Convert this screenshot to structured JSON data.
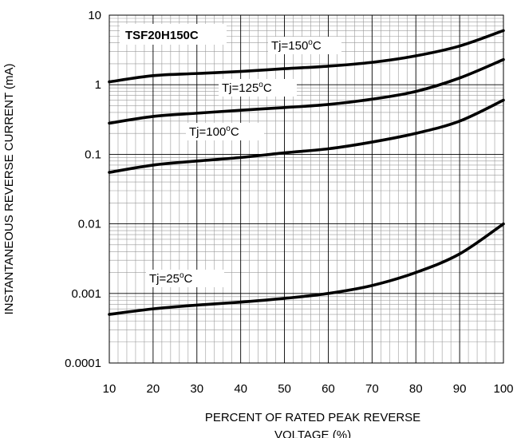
{
  "chart_data": {
    "type": "line",
    "title": "TSF20H150C",
    "xlabel": "PERCENT OF RATED PEAK REVERSE VOLTAGE (%)",
    "xlabel_lines": [
      "PERCENT OF RATED PEAK REVERSE",
      "VOLTAGE (%)"
    ],
    "ylabel": "INSTANTANEOUS REVERSE CURRENT (mA)",
    "xlim": [
      10,
      100
    ],
    "ylim": [
      0.0001,
      10
    ],
    "y_scale": "log",
    "grid": true,
    "x_ticks": [
      "10",
      "20",
      "30",
      "40",
      "50",
      "60",
      "70",
      "80",
      "90",
      "100"
    ],
    "y_ticks": [
      "0.0001",
      "0.001",
      "0.01",
      "0.1",
      "1",
      "10"
    ],
    "x_tick_values": [
      10,
      20,
      30,
      40,
      50,
      60,
      70,
      80,
      90,
      100
    ],
    "y_tick_values": [
      0.0001,
      0.001,
      0.01,
      0.1,
      1,
      10
    ],
    "x": [
      10,
      20,
      30,
      40,
      50,
      60,
      70,
      80,
      90,
      100
    ],
    "series": [
      {
        "name": "Tj=150°C",
        "label_text": "Tj=150",
        "label_sup": "o",
        "label_unit": "C",
        "values": [
          1.1,
          1.35,
          1.45,
          1.55,
          1.7,
          1.85,
          2.1,
          2.6,
          3.6,
          6.0
        ]
      },
      {
        "name": "Tj=125°C",
        "label_text": "Tj=125",
        "label_sup": "o",
        "label_unit": "C",
        "values": [
          0.28,
          0.35,
          0.39,
          0.43,
          0.47,
          0.52,
          0.62,
          0.8,
          1.25,
          2.3
        ]
      },
      {
        "name": "Tj=100°C",
        "label_text": "Tj=100",
        "label_sup": "o",
        "label_unit": "C",
        "values": [
          0.055,
          0.07,
          0.08,
          0.09,
          0.105,
          0.12,
          0.15,
          0.2,
          0.3,
          0.6
        ]
      },
      {
        "name": "Tj=25°C",
        "label_text": "Tj=25",
        "label_sup": "o",
        "label_unit": "C",
        "values": [
          0.0005,
          0.0006,
          0.00068,
          0.00075,
          0.00085,
          0.001,
          0.0013,
          0.002,
          0.0037,
          0.01
        ]
      }
    ]
  }
}
